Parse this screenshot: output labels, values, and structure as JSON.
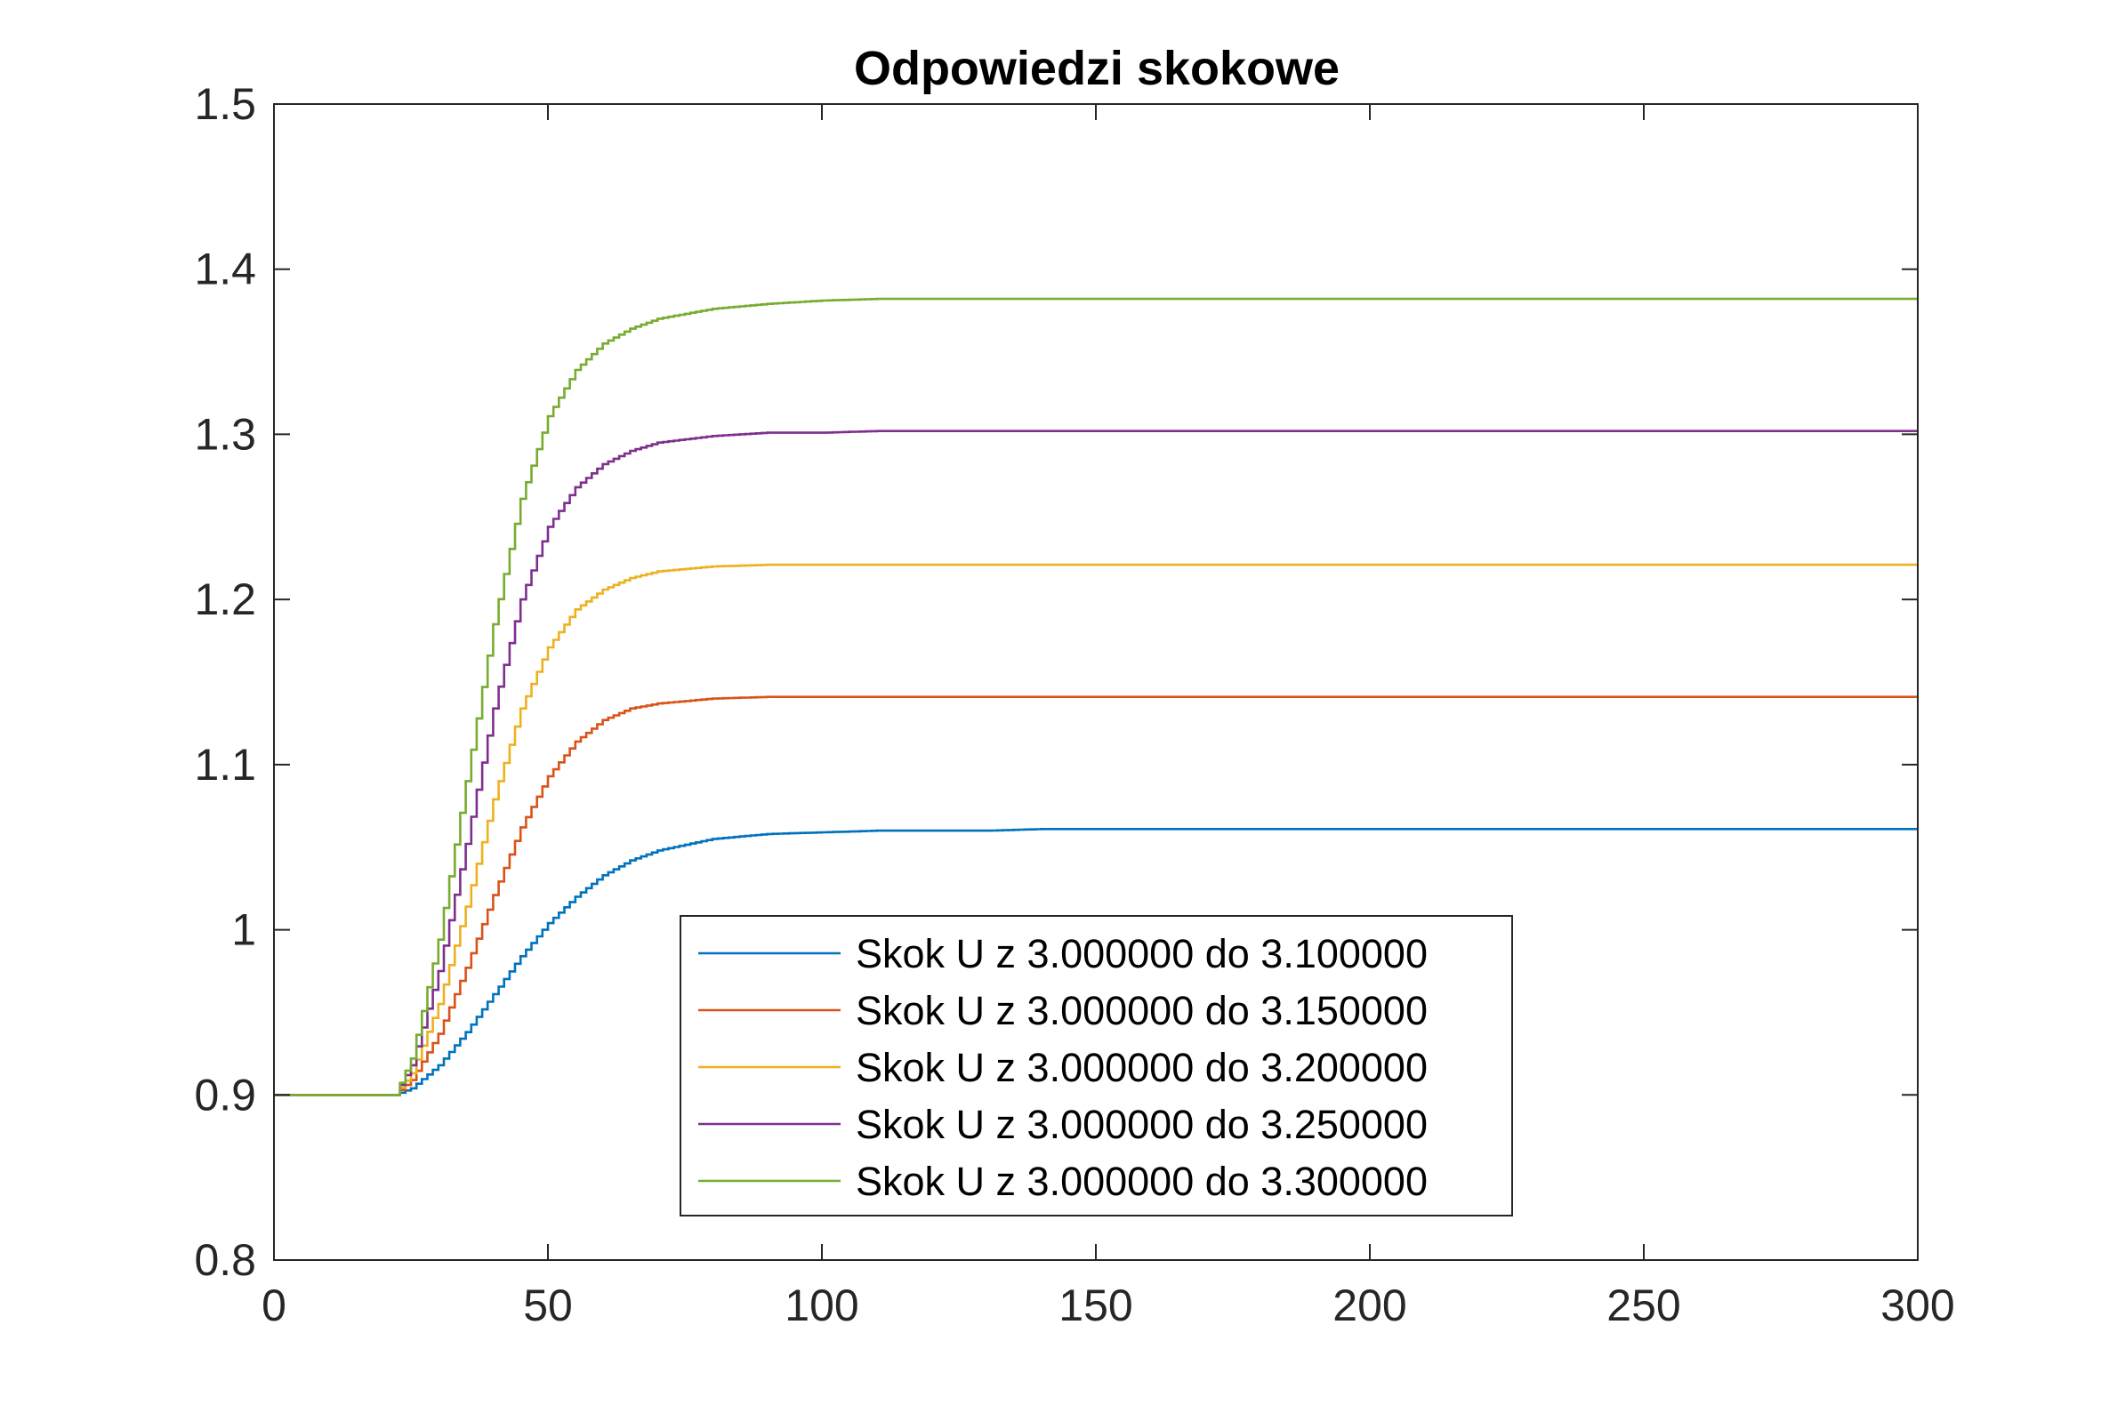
{
  "chart_data": {
    "type": "line",
    "title": "Odpowiedzi skokowe",
    "xlabel": "",
    "ylabel": "",
    "xlim": [
      0,
      300
    ],
    "ylim": [
      0.8,
      1.5
    ],
    "xticks": [
      0,
      50,
      100,
      150,
      200,
      250,
      300
    ],
    "xtick_labels": [
      "0",
      "50",
      "100",
      "150",
      "200",
      "250",
      "300"
    ],
    "yticks": [
      0.8,
      0.9,
      1.0,
      1.1,
      1.2,
      1.3,
      1.4,
      1.5
    ],
    "ytick_labels": [
      "0.8",
      "0.9",
      "1",
      "1.1",
      "1.2",
      "1.3",
      "1.4",
      "1.5"
    ],
    "grid": false,
    "legend_position": "bottom-center",
    "x": [
      0,
      21,
      22,
      25,
      30,
      35,
      40,
      45,
      50,
      55,
      60,
      65,
      70,
      80,
      90,
      100,
      110,
      120,
      130,
      140,
      150,
      200,
      300
    ],
    "series": [
      {
        "name": "Skok U z 3.000000 do 3.100000",
        "color": "#0072BD",
        "values": [
          0.9,
          0.9,
          0.9,
          0.904,
          0.918,
          0.938,
          0.961,
          0.984,
          1.004,
          1.02,
          1.033,
          1.042,
          1.048,
          1.055,
          1.058,
          1.059,
          1.06,
          1.06,
          1.06,
          1.061,
          1.061,
          1.061,
          1.061
        ]
      },
      {
        "name": "Skok U z 3.000000 do 3.150000",
        "color": "#D95319",
        "values": [
          0.9,
          0.9,
          0.9,
          0.909,
          0.937,
          0.977,
          1.021,
          1.062,
          1.093,
          1.114,
          1.127,
          1.134,
          1.137,
          1.14,
          1.141,
          1.141,
          1.141,
          1.141,
          1.141,
          1.141,
          1.141,
          1.141,
          1.141
        ]
      },
      {
        "name": "Skok U z 3.000000 do 3.200000",
        "color": "#EDB120",
        "values": [
          0.9,
          0.9,
          0.9,
          0.913,
          0.955,
          1.014,
          1.079,
          1.134,
          1.171,
          1.194,
          1.206,
          1.213,
          1.217,
          1.22,
          1.221,
          1.221,
          1.221,
          1.221,
          1.221,
          1.221,
          1.221,
          1.221,
          1.221
        ]
      },
      {
        "name": "Skok U z 3.000000 do 3.250000",
        "color": "#7E2F8E",
        "values": [
          0.9,
          0.9,
          0.9,
          0.918,
          0.975,
          1.052,
          1.134,
          1.2,
          1.244,
          1.268,
          1.282,
          1.29,
          1.295,
          1.299,
          1.301,
          1.301,
          1.302,
          1.302,
          1.302,
          1.302,
          1.302,
          1.302,
          1.302
        ]
      },
      {
        "name": "Skok U z 3.000000 do 3.300000",
        "color": "#77AC30",
        "values": [
          0.9,
          0.9,
          0.9,
          0.922,
          0.994,
          1.09,
          1.185,
          1.261,
          1.311,
          1.339,
          1.355,
          1.364,
          1.37,
          1.376,
          1.379,
          1.381,
          1.382,
          1.382,
          1.382,
          1.382,
          1.382,
          1.382,
          1.382
        ]
      }
    ]
  }
}
